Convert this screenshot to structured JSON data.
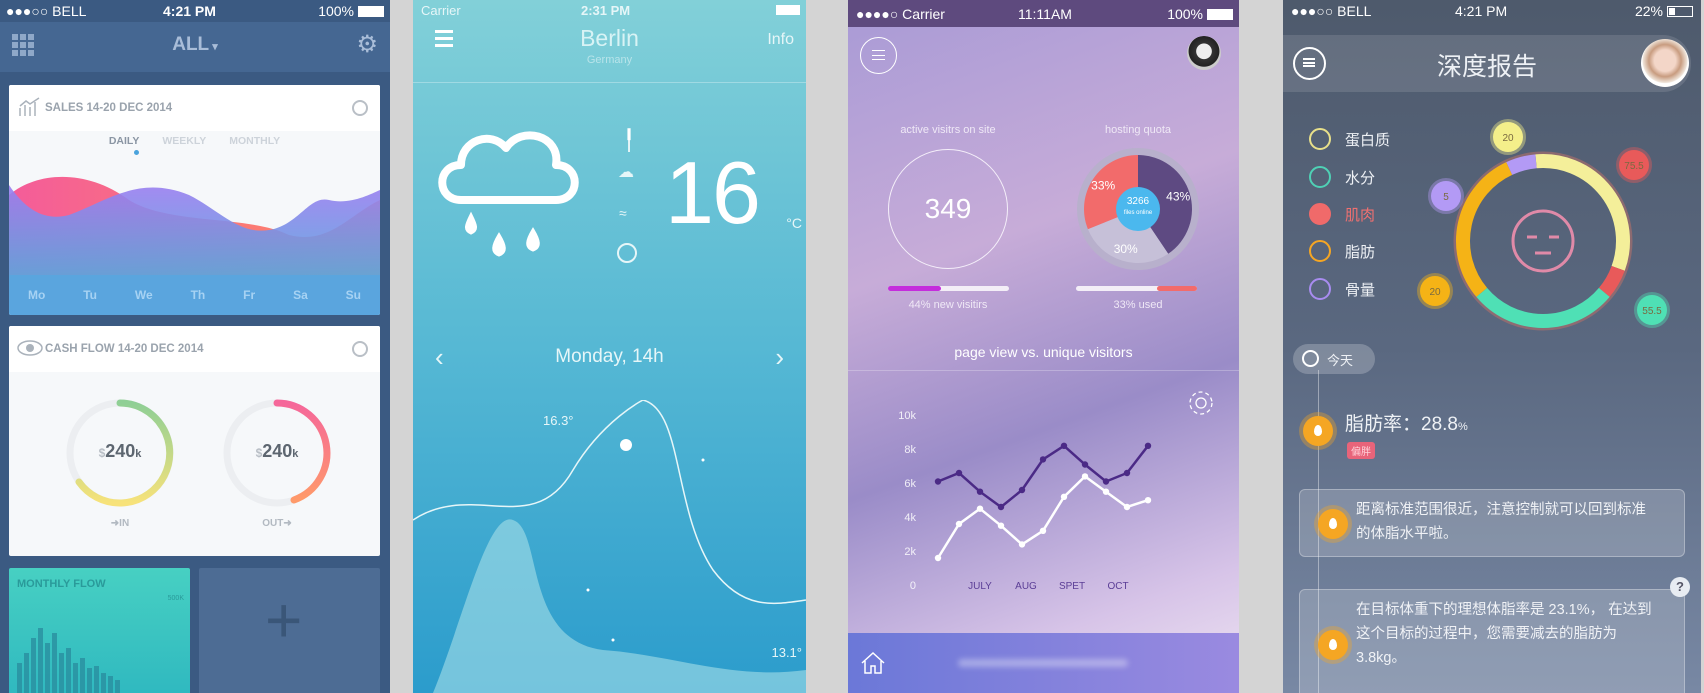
{
  "phone1": {
    "status": {
      "carrier": "●●●○○ BELL",
      "time": "4:21 PM",
      "battery": "100%"
    },
    "nav": {
      "title": "ALL",
      "title_icon": "chevron-down-icon",
      "left_icon": "grid-icon",
      "right_icon": "gear-icon"
    },
    "sales_card": {
      "title": "SALES 14-20 DEC 2014",
      "tabs": [
        "DAILY",
        "WEEKLY",
        "MONTHLY"
      ],
      "active_tab": "DAILY",
      "days": [
        "Mo",
        "Tu",
        "We",
        "Th",
        "Fr",
        "Sa",
        "Su"
      ]
    },
    "cashflow_card": {
      "title": "CASH FLOW 14-20 DEC 2014",
      "in": {
        "currency": "$",
        "value": "240",
        "unit": "k",
        "label": "➜IN"
      },
      "out": {
        "currency": "$",
        "value": "240",
        "unit": "k",
        "label": "OUT➜"
      }
    },
    "monthly_flow": {
      "title": "MONTHLY FLOW",
      "max_label": "500K"
    },
    "add_tile": {
      "icon": "plus-icon"
    },
    "colors": {
      "bg": "#3b5a82",
      "accent": "#5aa5de",
      "in_ring": "#9bd18e",
      "out_ring": "#f5679a",
      "teal": "#3ec8c0"
    }
  },
  "phone2": {
    "status": {
      "carrier": "Carrier",
      "time": "2:31 PM"
    },
    "header": {
      "city": "Berlin",
      "country": "Germany",
      "info": "Info"
    },
    "current": {
      "temp": "16",
      "unit": "°C",
      "condition_icon": "rain-cloud-icon"
    },
    "day": {
      "label": "Monday, 14h"
    },
    "chart": {
      "high": "16.3°",
      "low": "13.1°"
    }
  },
  "phone3": {
    "status": {
      "carrier": "●●●●○ Carrier",
      "time": "11:11AM",
      "battery": "100%"
    },
    "visitors": {
      "label": "active visitrs on site",
      "value": "349",
      "new_pct": 44,
      "new_label": "44% new visitirs"
    },
    "hosting": {
      "label": "hosting quota",
      "slices": [
        {
          "pct": "33%",
          "value": 33,
          "color": "#f26b6b"
        },
        {
          "pct": "43%",
          "value": 43,
          "color": "#5e4a82"
        },
        {
          "pct": "30%",
          "value": 30,
          "color": "#c6c0d8"
        }
      ],
      "files": "3266",
      "files_label": "files online",
      "used_pct": 33,
      "used_label": "33% used"
    },
    "chart_title": "page view vs. unique visitors"
  },
  "chart_data": {
    "type": "line",
    "title": "page view vs. unique visitors",
    "yticks": [
      "0",
      "2k",
      "4k",
      "6k",
      "8k",
      "10k"
    ],
    "ylim": [
      0,
      10000
    ],
    "xticks": [
      "JULY",
      "AUG",
      "SPET",
      "OCT"
    ],
    "grid": false,
    "series": [
      {
        "color": "#4b2a86",
        "values": [
          5500,
          6000,
          4900,
          4000,
          5000,
          6800,
          7600,
          6500,
          5500,
          6000,
          7600
        ]
      },
      {
        "color": "#ffffff",
        "values": [
          1000,
          3000,
          3900,
          2900,
          1800,
          2600,
          4600,
          5800,
          4900,
          4000,
          4400
        ]
      }
    ]
  },
  "phone4": {
    "status": {
      "carrier": "●●●○○ BELL",
      "time": "4:21 PM",
      "battery": "22%"
    },
    "title": "深度报告",
    "legend": [
      {
        "label": "蛋白质",
        "color": "#e8e08a"
      },
      {
        "label": "水分",
        "color": "#4fd1b5"
      },
      {
        "label": "肌肉",
        "color": "#f06a6a"
      },
      {
        "label": "脂肪",
        "color": "#f5a623"
      },
      {
        "label": "骨量",
        "color": "#a88cf0"
      }
    ],
    "badges": [
      {
        "value": "20",
        "color": "#f4ef8a"
      },
      {
        "value": "75.5",
        "color": "#e85a5a"
      },
      {
        "value": "5",
        "color": "#b39af5"
      },
      {
        "value": "20",
        "color": "#f5b316"
      },
      {
        "value": "55.5",
        "color": "#4fe0b5"
      }
    ],
    "today": "今天",
    "fat_rate_label": "脂肪率：",
    "fat_rate": "28.8",
    "fat_unit": "%",
    "status_badge": "偏胖",
    "cards": [
      "距离标准范围很近，注意控制就可以回到标准的体脂水平啦。",
      "在目标体重下的理想体脂率是 23.1%， 在达到这个目标的过程中，您需要减去的脂肪为 3.8kg。"
    ],
    "help": "?"
  }
}
